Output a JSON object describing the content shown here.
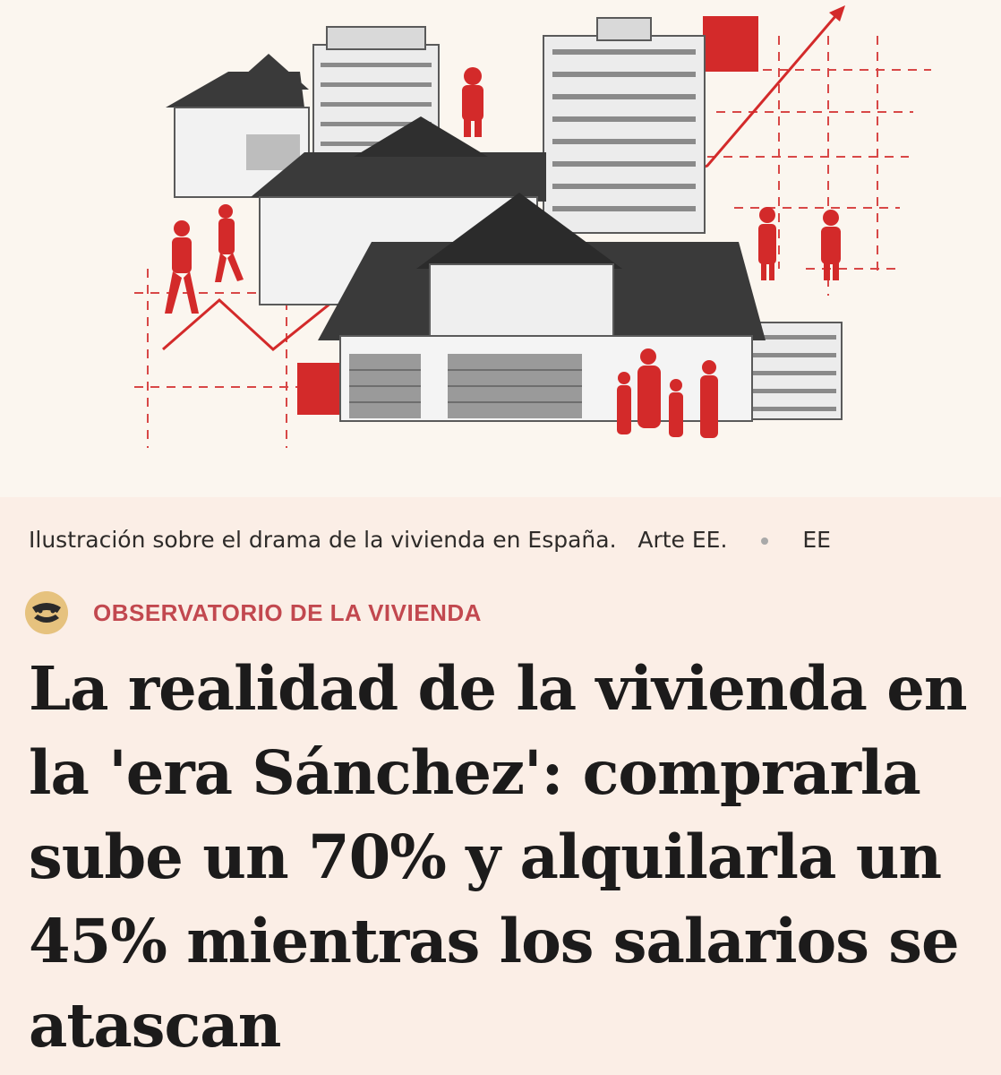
{
  "hero_image": {
    "alt": "Ilustración sobre el drama de la vivienda en España.",
    "accent_color": "#d32a2a",
    "dark_color": "#3a3a3a"
  },
  "caption": {
    "text": "Ilustración sobre el drama de la vivienda en España.",
    "credit": "Arte EE.",
    "source": "EE",
    "separator_icon": "bullet-dot-icon"
  },
  "section": {
    "logo_icon": "tiger-logo-icon",
    "label": "OBSERVATORIO DE LA VIVIENDA",
    "label_color": "#c2484f"
  },
  "article": {
    "headline": "La realidad de la vivienda en la 'era Sánchez': comprarla sube un 70% y alquilarla un 45% mientras los salarios se atascan"
  }
}
